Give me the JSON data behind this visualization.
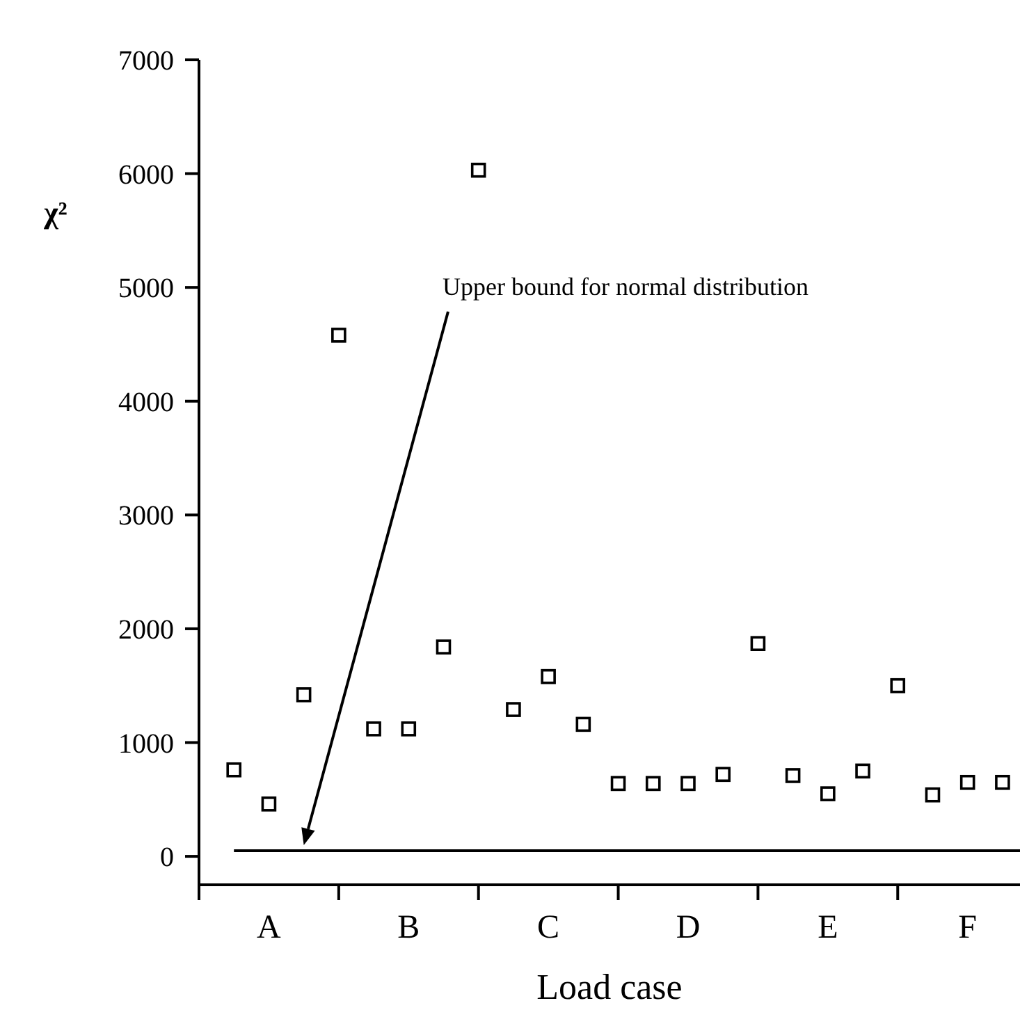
{
  "chart_data": {
    "type": "scatter",
    "xlabel": "Load case",
    "ylabel": "χ²",
    "marker": "square",
    "categories": [
      null,
      "A",
      null,
      null,
      null,
      "B",
      null,
      null,
      null,
      "C",
      null,
      null,
      null,
      "D",
      null,
      null,
      null,
      "E",
      null,
      null,
      null,
      "F",
      null
    ],
    "values": [
      760,
      460,
      1420,
      4580,
      1120,
      1120,
      1840,
      6030,
      1290,
      1580,
      1160,
      640,
      640,
      640,
      720,
      1870,
      710,
      550,
      750,
      1500,
      540,
      650,
      650
    ],
    "color": "#000000",
    "ylim": [
      -250,
      7000
    ],
    "yticks": [
      0,
      1000,
      2000,
      3000,
      4000,
      5000,
      6000,
      7000
    ],
    "ref_lines": [
      {
        "axis": "y",
        "value": 50
      }
    ],
    "annotations": [
      "Upper bound for normal distribution"
    ]
  }
}
